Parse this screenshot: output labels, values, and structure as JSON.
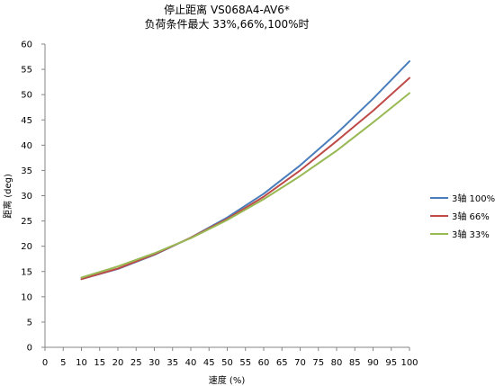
{
  "chart_data": {
    "type": "line",
    "title": [
      "停止距离 VS068A4-AV6*",
      "负荷条件最大 33%,66%,100%时"
    ],
    "xlabel": "速度 (%)",
    "ylabel": "距离 (deg)",
    "xlim": [
      0,
      100
    ],
    "ylim": [
      0,
      60
    ],
    "xticks": [
      0,
      5,
      10,
      15,
      20,
      25,
      30,
      35,
      40,
      45,
      50,
      55,
      60,
      65,
      70,
      75,
      80,
      85,
      90,
      95,
      100
    ],
    "yticks": [
      0,
      5,
      10,
      15,
      20,
      25,
      30,
      35,
      40,
      45,
      50,
      55,
      60
    ],
    "grid": "none",
    "legend_position": "right",
    "x": [
      10,
      20,
      30,
      40,
      50,
      60,
      70,
      80,
      90,
      100
    ],
    "series": [
      {
        "name": "3轴 100%",
        "color": "#4a7ebb",
        "values": [
          13.5,
          15.5,
          18.3,
          21.7,
          25.7,
          30.4,
          36.0,
          42.3,
          49.2,
          56.6
        ]
      },
      {
        "name": "3轴 66%",
        "color": "#be4b48",
        "values": [
          13.5,
          15.6,
          18.4,
          21.7,
          25.4,
          29.8,
          35.0,
          40.8,
          46.8,
          53.3
        ]
      },
      {
        "name": "3轴 33%",
        "color": "#98b954",
        "values": [
          13.8,
          16.0,
          18.6,
          21.6,
          25.2,
          29.3,
          33.9,
          38.9,
          44.5,
          50.3
        ]
      }
    ]
  }
}
